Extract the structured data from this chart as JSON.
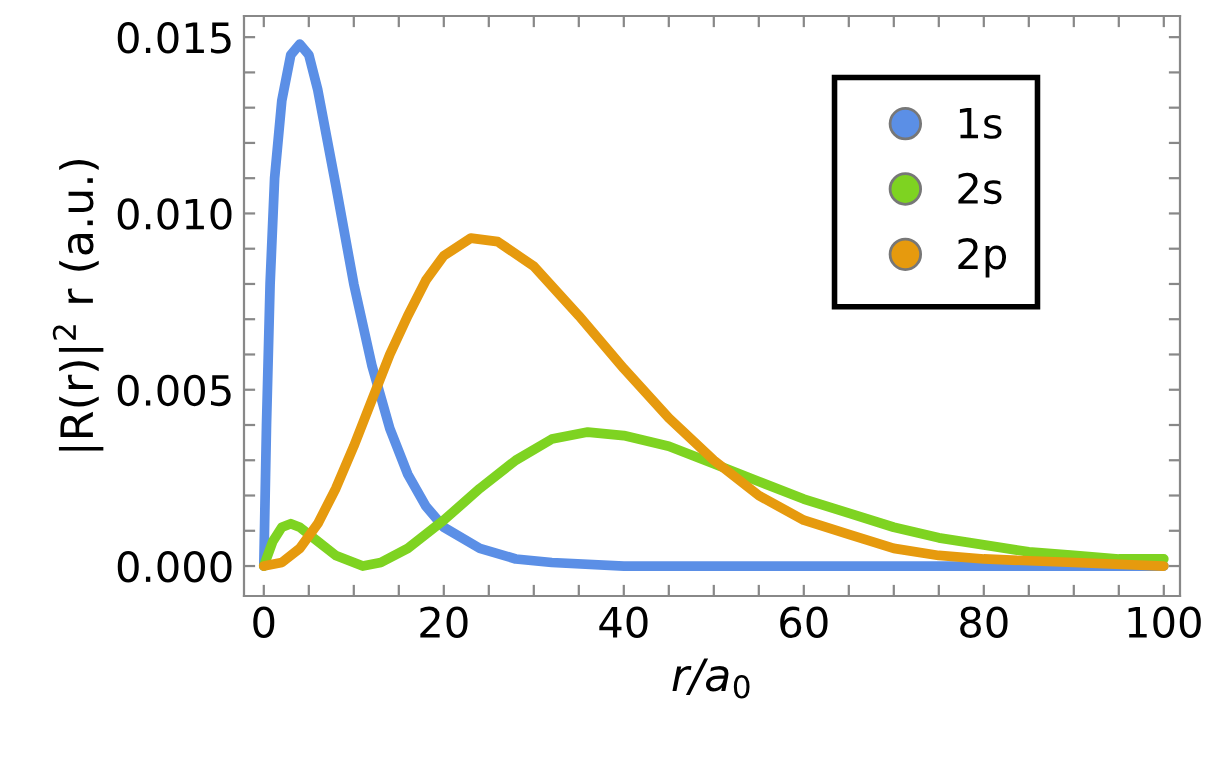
{
  "chart_data": {
    "type": "line",
    "xlabel": "r/a$_{0}$",
    "ylabel": "|R(r)|$^{2}$ r (a.u.)",
    "xlim": [
      -2.2,
      101.8
    ],
    "ylim": [
      -0.00085,
      0.0156
    ],
    "xticks": [
      0,
      {
        "value": 5,
        "label": null
      },
      {
        "value": 10,
        "label": null
      },
      {
        "value": 15,
        "label": null
      },
      20,
      {
        "value": 25,
        "label": null
      },
      {
        "value": 30,
        "label": null
      },
      {
        "value": 35,
        "label": null
      },
      40,
      {
        "value": 45,
        "label": null
      },
      {
        "value": 50,
        "label": null
      },
      {
        "value": 55,
        "label": null
      },
      60,
      {
        "value": 65,
        "label": null
      },
      {
        "value": 70,
        "label": null
      },
      {
        "value": 75,
        "label": null
      },
      80,
      {
        "value": 85,
        "label": null
      },
      {
        "value": 90,
        "label": null
      },
      {
        "value": 95,
        "label": null
      },
      100
    ],
    "yticks": [
      {
        "value": 0,
        "label": "0.000"
      },
      {
        "value": 0.001,
        "label": null
      },
      {
        "value": 0.002,
        "label": null
      },
      {
        "value": 0.003,
        "label": null
      },
      {
        "value": 0.004,
        "label": null
      },
      {
        "value": 0.005,
        "label": "0.005"
      },
      {
        "value": 0.006,
        "label": null
      },
      {
        "value": 0.007,
        "label": null
      },
      {
        "value": 0.008,
        "label": null
      },
      {
        "value": 0.009,
        "label": null
      },
      {
        "value": 0.01,
        "label": "0.010"
      },
      {
        "value": 0.011,
        "label": null
      },
      {
        "value": 0.012,
        "label": null
      },
      {
        "value": 0.013,
        "label": null
      },
      {
        "value": 0.014,
        "label": null
      },
      {
        "value": 0.015,
        "label": "0.015"
      }
    ],
    "grid": false,
    "legend": "top right",
    "marker": "none",
    "line_style": "solid",
    "series": [
      {
        "name": "1s",
        "color": "#5b8fe6",
        "x": [
          0,
          0.3,
          0.7,
          1.2,
          2,
          3,
          4,
          5,
          6,
          8,
          10,
          12,
          14,
          16,
          18,
          20,
          24,
          28,
          32,
          40,
          60,
          100
        ],
        "values": [
          0,
          0.004,
          0.008,
          0.011,
          0.0132,
          0.0145,
          0.0148,
          0.0145,
          0.0135,
          0.0108,
          0.008,
          0.0057,
          0.0039,
          0.0026,
          0.0017,
          0.0011,
          0.0005,
          0.0002,
          0.0001,
          0,
          0,
          0
        ]
      },
      {
        "name": "2s",
        "color": "#7ed321",
        "x": [
          0,
          1,
          2,
          3,
          4,
          6,
          8,
          10,
          11,
          13,
          16,
          20,
          24,
          28,
          32,
          36,
          40,
          45,
          50,
          55,
          60,
          65,
          70,
          75,
          80,
          85,
          90,
          95,
          100
        ],
        "values": [
          0,
          0.0007,
          0.0011,
          0.0012,
          0.0011,
          0.0007,
          0.0003,
          0.0001,
          0,
          0.0001,
          0.0005,
          0.0013,
          0.0022,
          0.003,
          0.0036,
          0.0038,
          0.0037,
          0.0034,
          0.0029,
          0.0024,
          0.0019,
          0.0015,
          0.0011,
          0.0008,
          0.0006,
          0.0004,
          0.0003,
          0.0002,
          0.0002
        ]
      },
      {
        "name": "2p",
        "color": "#e69a0e",
        "x": [
          0,
          2,
          4,
          6,
          8,
          10,
          12,
          14,
          16,
          18,
          20,
          23,
          26,
          30,
          35,
          40,
          45,
          50,
          55,
          60,
          65,
          70,
          75,
          80,
          90,
          100
        ],
        "values": [
          0,
          0.0001,
          0.0005,
          0.0012,
          0.0022,
          0.0034,
          0.0047,
          0.006,
          0.0071,
          0.0081,
          0.0088,
          0.0093,
          0.0092,
          0.0085,
          0.0071,
          0.0056,
          0.0042,
          0.003,
          0.002,
          0.0013,
          0.0009,
          0.0005,
          0.0003,
          0.0002,
          0.0001,
          0
        ]
      }
    ]
  }
}
